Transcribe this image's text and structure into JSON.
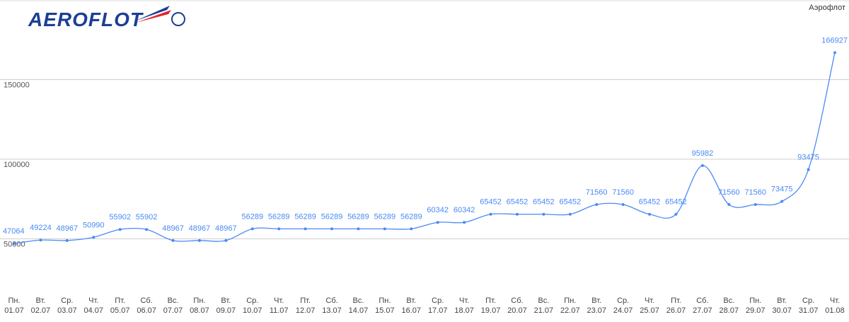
{
  "chart_data": {
    "type": "line",
    "logo": "AEROFLOT",
    "categories": [
      [
        "Пн.",
        "01.07"
      ],
      [
        "Вт.",
        "02.07"
      ],
      [
        "Ср.",
        "03.07"
      ],
      [
        "Чт.",
        "04.07"
      ],
      [
        "Пт.",
        "05.07"
      ],
      [
        "Сб.",
        "06.07"
      ],
      [
        "Вс.",
        "07.07"
      ],
      [
        "Пн.",
        "08.07"
      ],
      [
        "Вт.",
        "09.07"
      ],
      [
        "Ср.",
        "10.07"
      ],
      [
        "Чт.",
        "11.07"
      ],
      [
        "Пт.",
        "12.07"
      ],
      [
        "Сб.",
        "13.07"
      ],
      [
        "Вс.",
        "14.07"
      ],
      [
        "Пн.",
        "15.07"
      ],
      [
        "Вт.",
        "16.07"
      ],
      [
        "Ср.",
        "17.07"
      ],
      [
        "Чт.",
        "18.07"
      ],
      [
        "Пт.",
        "19.07"
      ],
      [
        "Сб.",
        "20.07"
      ],
      [
        "Вс.",
        "21.07"
      ],
      [
        "Пн.",
        "22.07"
      ],
      [
        "Вт.",
        "23.07"
      ],
      [
        "Ср.",
        "24.07"
      ],
      [
        "Чт.",
        "25.07"
      ],
      [
        "Пт.",
        "26.07"
      ],
      [
        "Сб.",
        "27.07"
      ],
      [
        "Вс.",
        "28.07"
      ],
      [
        "Пн.",
        "29.07"
      ],
      [
        "Вт.",
        "30.07"
      ],
      [
        "Ср.",
        "31.07"
      ],
      [
        "Чт.",
        "01.08"
      ]
    ],
    "series": [
      {
        "name": "Аэрофлот",
        "color": "#4a8af4",
        "values": [
          47064,
          49224,
          48967,
          50990,
          55902,
          55902,
          48967,
          48967,
          48967,
          56289,
          56289,
          56289,
          56289,
          56289,
          56289,
          56289,
          60342,
          60342,
          65452,
          65452,
          65452,
          65452,
          71560,
          71560,
          65452,
          65452,
          95982,
          71560,
          71560,
          73475,
          93475,
          166927
        ]
      }
    ],
    "ylim": [
      0,
      200000
    ],
    "yticks": [
      50000,
      100000,
      150000
    ],
    "grid": true,
    "legend": "top-right"
  }
}
